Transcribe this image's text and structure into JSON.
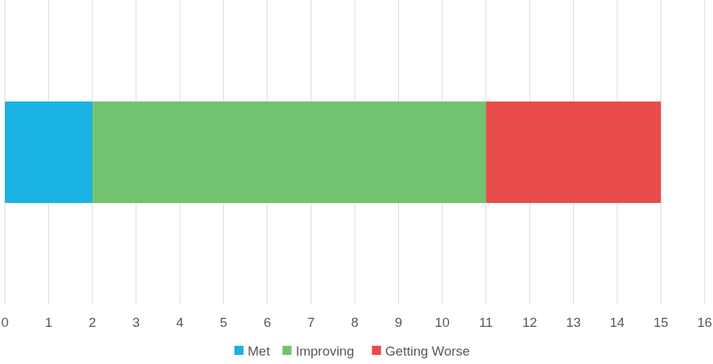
{
  "chart_data": {
    "type": "bar",
    "orientation": "horizontal",
    "stacked": true,
    "categories": [
      null
    ],
    "series": [
      {
        "name": "Met",
        "color": "#1ab2e3",
        "values": [
          2
        ]
      },
      {
        "name": "Improving",
        "color": "#71c36f",
        "values": [
          9
        ]
      },
      {
        "name": "Getting Worse",
        "color": "#e84b4b",
        "values": [
          4
        ]
      }
    ],
    "xlim": [
      0,
      16
    ],
    "xticks": [
      0,
      1,
      2,
      3,
      4,
      5,
      6,
      7,
      8,
      9,
      10,
      11,
      12,
      13,
      14,
      15,
      16
    ],
    "grid": "x",
    "legend": "bottom"
  }
}
